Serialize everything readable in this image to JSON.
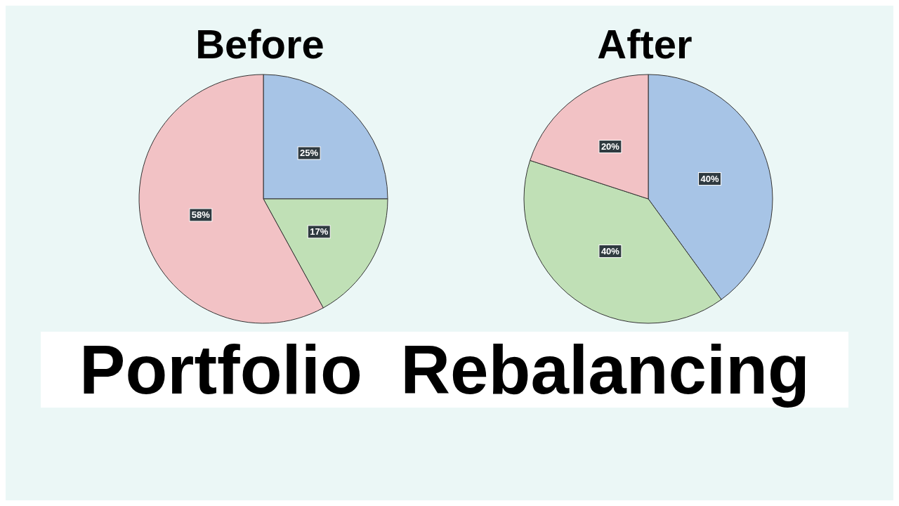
{
  "chart_data": [
    {
      "type": "pie",
      "title": "Before",
      "categories": [
        null,
        null,
        null
      ],
      "values": [
        25,
        17,
        58
      ],
      "colors": [
        "#a7c4e6",
        "#c0e0b6",
        "#f2c2c5"
      ],
      "value_labels": [
        "25%",
        "17%",
        "58%"
      ],
      "legend": false,
      "annotations": [
        "Portfolio  Rebalancing"
      ]
    },
    {
      "type": "pie",
      "title": "After",
      "categories": [
        null,
        null,
        null
      ],
      "values": [
        40,
        40,
        20
      ],
      "colors": [
        "#a7c4e6",
        "#c0e0b6",
        "#f2c2c5"
      ],
      "value_labels": [
        "40%",
        "40%",
        "20%"
      ],
      "legend": false
    }
  ]
}
